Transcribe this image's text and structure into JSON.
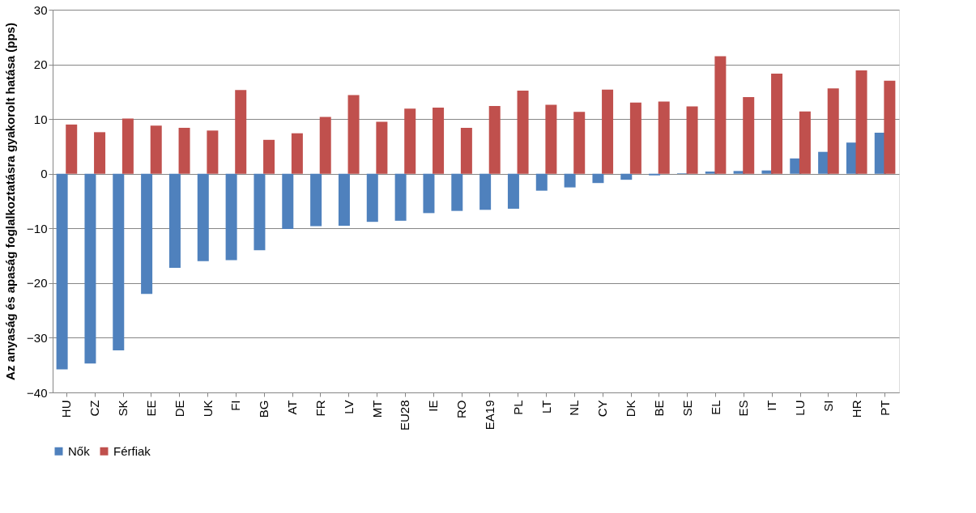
{
  "chart_data": {
    "type": "bar",
    "ylabel": "Az anyaság és apaság foglalkoztatásra gyakorolt hatása (pps)",
    "categories": [
      "HU",
      "CZ",
      "SK",
      "EE",
      "DE",
      "UK",
      "FI",
      "BG",
      "AT",
      "FR",
      "LV",
      "MT",
      "EU28",
      "IE",
      "RO",
      "EA19",
      "PL",
      "LT",
      "NL",
      "CY",
      "DK",
      "BE",
      "SE",
      "EL",
      "ES",
      "IT",
      "LU",
      "SI",
      "HR",
      "PT"
    ],
    "series": [
      {
        "name": "Nők",
        "color": "#4f81bd",
        "values": [
          -35.8,
          -34.7,
          -32.3,
          -22,
          -17.2,
          -16,
          -15.8,
          -14,
          -10.1,
          -9.6,
          -9.5,
          -8.8,
          -8.6,
          -7.2,
          -6.8,
          -6.6,
          -6.4,
          -3.1,
          -2.5,
          -1.7,
          -1.1,
          -0.3,
          0.1,
          0.4,
          0.5,
          0.6,
          2.8,
          4.0,
          5.7,
          7.5
        ]
      },
      {
        "name": "Férfiak",
        "color": "#c0504d",
        "values": [
          9.0,
          7.6,
          10.1,
          8.8,
          8.4,
          7.9,
          15.3,
          6.2,
          7.4,
          10.4,
          14.4,
          9.5,
          11.9,
          12.1,
          8.4,
          12.4,
          15.2,
          12.6,
          11.3,
          15.4,
          13.0,
          13.2,
          12.3,
          21.5,
          14.0,
          18.3,
          11.4,
          15.6,
          18.9,
          17.0
        ]
      }
    ],
    "ylim": [
      -40,
      30
    ],
    "yticks": [
      -40,
      -30,
      -20,
      -10,
      0,
      10,
      20,
      30
    ],
    "grid": "y",
    "legend": "bottom"
  }
}
